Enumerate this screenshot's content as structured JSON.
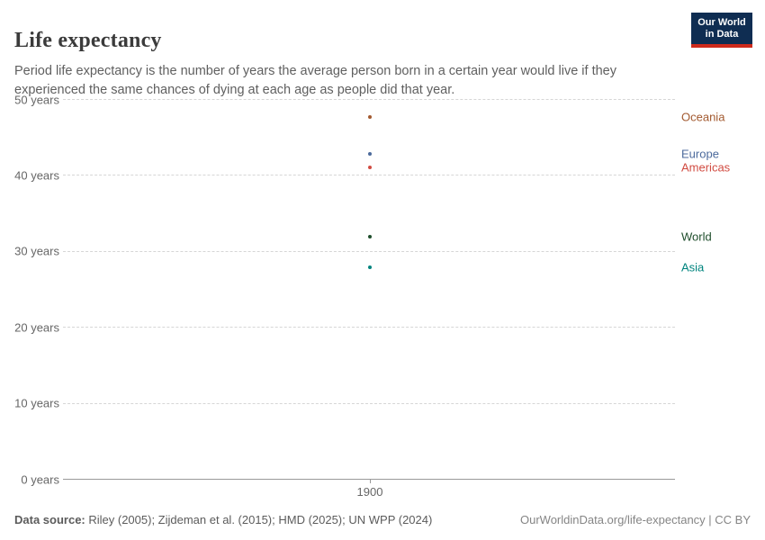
{
  "header": {
    "title": "Life expectancy",
    "subtitle": "Period life expectancy is the number of years the average person born in a certain year would live if they experienced the same chances of dying at each age as people did that year."
  },
  "logo": {
    "line1": "Our World",
    "line2": "in Data",
    "bg_color": "#0F2D52",
    "accent_color": "#CE2A1B"
  },
  "chart_data": {
    "type": "scatter",
    "title": "Life expectancy",
    "x": [
      1900
    ],
    "xticks": [
      1900
    ],
    "ylim": [
      0,
      50
    ],
    "yticks": [
      0,
      10,
      20,
      30,
      40,
      50
    ],
    "ytick_format": "{v} years",
    "xlabel": "",
    "ylabel": "",
    "grid": "dashed-horizontal",
    "legend_position": "right-inline",
    "series": [
      {
        "name": "Oceania",
        "color": "#A2592F",
        "values": [
          47.6
        ]
      },
      {
        "name": "Europe",
        "color": "#4C6A9C",
        "values": [
          42.8
        ]
      },
      {
        "name": "Americas",
        "color": "#D14B41",
        "values": [
          41.0
        ]
      },
      {
        "name": "World",
        "color": "#1F4E2C",
        "values": [
          31.9
        ]
      },
      {
        "name": "Asia",
        "color": "#00847E",
        "values": [
          27.8
        ]
      }
    ]
  },
  "footer": {
    "source_label": "Data source:",
    "source_text": " Riley (2005); Zijdeman et al. (2015); HMD (2025); UN WPP (2024)",
    "credit": "OurWorldinData.org/life-expectancy | CC BY"
  }
}
